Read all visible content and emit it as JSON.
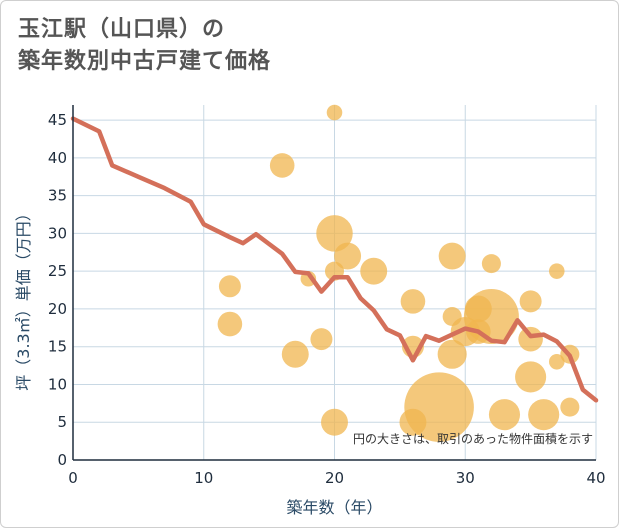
{
  "title_lines": [
    "玉江駅（山口県）の",
    "築年数別中古戸建て価格"
  ],
  "note": "円の大きさは、取引のあった物件面積を示す",
  "colors": {
    "bubble": "#f0b54f",
    "line": "#d4705a",
    "grid": "#c8d8e4",
    "axis": "#1f2d3d"
  },
  "chart_data": {
    "type": "scatter",
    "xlabel": "築年数（年）",
    "ylabel": "坪（3.3㎡）単価（万円）",
    "xlim": [
      0,
      40
    ],
    "ylim": [
      0,
      47
    ],
    "x_ticks": [
      0,
      10,
      20,
      30,
      40
    ],
    "y_ticks": [
      0,
      5,
      10,
      15,
      20,
      25,
      30,
      35,
      40,
      45
    ],
    "grid": true,
    "bubbles": [
      {
        "x": 12,
        "y": 23,
        "size": 4
      },
      {
        "x": 12,
        "y": 18,
        "size": 5
      },
      {
        "x": 16,
        "y": 39,
        "size": 5
      },
      {
        "x": 17,
        "y": 14,
        "size": 6
      },
      {
        "x": 18,
        "y": 24,
        "size": 2
      },
      {
        "x": 19,
        "y": 16,
        "size": 4
      },
      {
        "x": 20,
        "y": 46,
        "size": 2
      },
      {
        "x": 20,
        "y": 30,
        "size": 11
      },
      {
        "x": 20,
        "y": 25,
        "size": 3
      },
      {
        "x": 20,
        "y": 5,
        "size": 6
      },
      {
        "x": 21,
        "y": 27,
        "size": 6
      },
      {
        "x": 23,
        "y": 25,
        "size": 6
      },
      {
        "x": 26,
        "y": 21,
        "size": 5
      },
      {
        "x": 26,
        "y": 15,
        "size": 4
      },
      {
        "x": 26,
        "y": 5,
        "size": 6
      },
      {
        "x": 28,
        "y": 7,
        "size": 40
      },
      {
        "x": 29,
        "y": 27,
        "size": 6
      },
      {
        "x": 29,
        "y": 19,
        "size": 3
      },
      {
        "x": 29,
        "y": 14,
        "size": 7
      },
      {
        "x": 30,
        "y": 17,
        "size": 7
      },
      {
        "x": 31,
        "y": 20,
        "size": 6
      },
      {
        "x": 31,
        "y": 17,
        "size": 5
      },
      {
        "x": 32,
        "y": 26,
        "size": 3
      },
      {
        "x": 32,
        "y": 19,
        "size": 25
      },
      {
        "x": 33,
        "y": 6,
        "size": 8
      },
      {
        "x": 35,
        "y": 21,
        "size": 4
      },
      {
        "x": 35,
        "y": 16,
        "size": 5
      },
      {
        "x": 35,
        "y": 11,
        "size": 8
      },
      {
        "x": 36,
        "y": 6,
        "size": 8
      },
      {
        "x": 37,
        "y": 25,
        "size": 2
      },
      {
        "x": 37,
        "y": 13,
        "size": 2
      },
      {
        "x": 38,
        "y": 14,
        "size": 3
      },
      {
        "x": 38,
        "y": 7,
        "size": 3
      }
    ],
    "line": {
      "x": [
        0,
        2,
        3,
        5,
        7,
        9,
        10,
        12,
        13,
        14,
        15,
        16,
        17,
        18,
        19,
        20,
        21,
        22,
        23,
        24,
        25,
        26,
        27,
        28,
        29,
        30,
        31,
        32,
        33,
        34,
        35,
        36,
        37,
        38,
        39,
        40
      ],
      "y": [
        45.2,
        43.5,
        39,
        37.5,
        36,
        34.2,
        31.2,
        29.5,
        28.7,
        29.9,
        28.6,
        27.3,
        24.9,
        24.7,
        22.3,
        24.2,
        24.2,
        21.4,
        19.8,
        17.3,
        16.5,
        13.2,
        16.4,
        15.8,
        16.6,
        17.4,
        17.0,
        15.8,
        15.6,
        18.5,
        16.4,
        16.6,
        15.7,
        13.8,
        9.3,
        7.9
      ]
    }
  }
}
